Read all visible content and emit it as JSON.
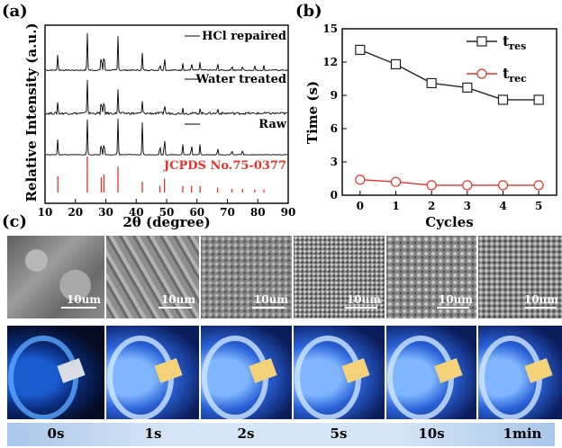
{
  "panel_a": {
    "label": "(a)",
    "traces": [
      "HCl repaired",
      "Water treated",
      "Raw"
    ],
    "reference_label": "JCPDS No.75-0377",
    "reference_color": "#e8322b",
    "ylabel": "Relative Intensity (a.u.)",
    "xlabel": "2θ (degree)",
    "xticks": [
      "10",
      "20",
      "30",
      "40",
      "50",
      "60",
      "70",
      "80",
      "90"
    ]
  },
  "panel_b": {
    "label": "(b)",
    "xlabel": "Cycles",
    "ylabel": "Time (s)",
    "legend": {
      "res": "t",
      "res_sub": "res",
      "rec": "t",
      "rec_sub": "rec"
    },
    "colors": {
      "res": "#222222",
      "rec": "#e8322b"
    }
  },
  "panel_c": {
    "label": "(c)",
    "scale_bars": [
      "10um",
      "10um",
      "10um",
      "10um",
      "10um",
      "10um"
    ],
    "time_labels": [
      "0s",
      "1s",
      "2s",
      "5s",
      "10s",
      "1min"
    ]
  },
  "chart_data": [
    {
      "type": "line",
      "title": "",
      "xlabel": "2θ (degree)",
      "ylabel": "Relative Intensity (a.u.)",
      "xlim": [
        10,
        90
      ],
      "series": [
        {
          "name": "HCl repaired",
          "peaks": [
            [
              14.2,
              0.45
            ],
            [
              23.9,
              1.0
            ],
            [
              28.5,
              0.5
            ],
            [
              29.4,
              0.55
            ],
            [
              34.0,
              0.9
            ],
            [
              42.0,
              0.45
            ],
            [
              47.8,
              0.2
            ],
            [
              49.3,
              0.4
            ],
            [
              55.3,
              0.2
            ],
            [
              58.2,
              0.22
            ],
            [
              61.0,
              0.22
            ],
            [
              66.8,
              0.2
            ],
            [
              71.5,
              0.15
            ],
            [
              75.0,
              0.12
            ],
            [
              79.0,
              0.12
            ],
            [
              82.0,
              0.12
            ]
          ]
        },
        {
          "name": "Water treated",
          "peaks": [
            [
              14.2,
              0.35
            ],
            [
              23.9,
              1.0
            ],
            [
              28.5,
              0.45
            ],
            [
              29.4,
              0.5
            ],
            [
              34.0,
              0.7
            ],
            [
              42.0,
              0.35
            ],
            [
              49.3,
              0.3
            ],
            [
              55.3,
              0.15
            ],
            [
              61.0,
              0.15
            ],
            [
              66.8,
              0.15
            ]
          ]
        },
        {
          "name": "Raw",
          "peaks": [
            [
              14.2,
              0.45
            ],
            [
              23.9,
              1.0
            ],
            [
              28.5,
              0.4
            ],
            [
              29.4,
              0.45
            ],
            [
              34.0,
              1.0
            ],
            [
              42.0,
              0.9
            ],
            [
              47.8,
              0.3
            ],
            [
              49.3,
              0.55
            ],
            [
              55.3,
              0.3
            ],
            [
              58.2,
              0.3
            ],
            [
              61.0,
              0.3
            ],
            [
              66.8,
              0.2
            ],
            [
              71.5,
              0.15
            ],
            [
              75.0,
              0.15
            ]
          ]
        },
        {
          "name": "JCPDS No.75-0377",
          "peaks": [
            [
              14.2,
              0.45
            ],
            [
              23.9,
              1.0
            ],
            [
              28.5,
              0.42
            ],
            [
              29.4,
              0.5
            ],
            [
              34.0,
              0.72
            ],
            [
              42.0,
              0.3
            ],
            [
              47.8,
              0.18
            ],
            [
              49.3,
              0.38
            ],
            [
              55.3,
              0.18
            ],
            [
              58.2,
              0.18
            ],
            [
              61.0,
              0.18
            ],
            [
              66.8,
              0.14
            ],
            [
              71.5,
              0.1
            ],
            [
              75.0,
              0.1
            ],
            [
              79.0,
              0.08
            ],
            [
              82.0,
              0.08
            ]
          ]
        }
      ]
    },
    {
      "type": "line",
      "title": "",
      "xlabel": "Cycles",
      "ylabel": "Time (s)",
      "x": [
        0,
        1,
        2,
        3,
        4,
        5
      ],
      "xlim": [
        -0.5,
        5.5
      ],
      "ylim": [
        0,
        15
      ],
      "yticks": [
        0,
        3,
        6,
        9,
        12,
        15
      ],
      "legend_position": "top-right",
      "series": [
        {
          "name": "t_res",
          "marker": "square",
          "values": [
            13.1,
            11.8,
            10.1,
            9.7,
            8.6,
            8.6
          ]
        },
        {
          "name": "t_rec",
          "marker": "circle",
          "values": [
            1.4,
            1.2,
            0.9,
            0.9,
            0.9,
            0.9
          ]
        }
      ]
    }
  ]
}
